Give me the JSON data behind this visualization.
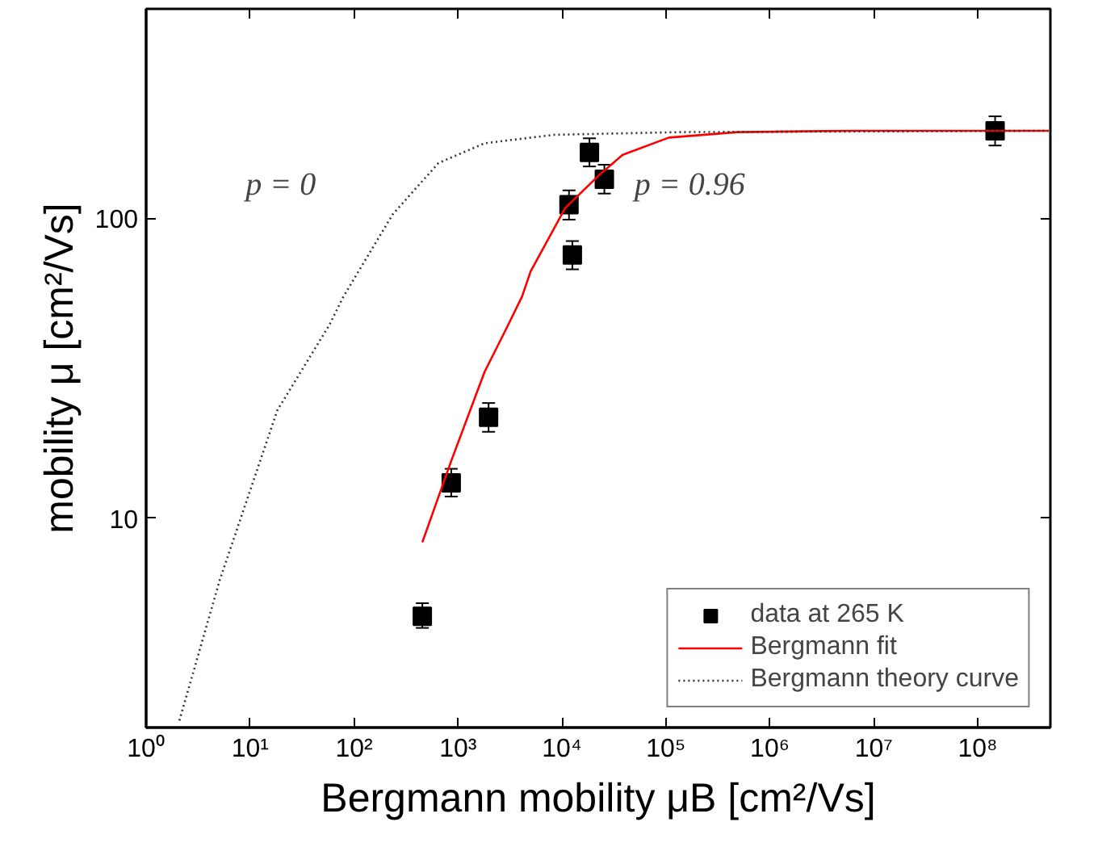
{
  "chart_data": {
    "type": "scatter",
    "xlabel": "Bergmann mobility μB [cm²/Vs]",
    "ylabel": "mobility μ [cm²/Vs]",
    "log": "xy",
    "grid": false,
    "legend": "bottom right",
    "xlim": [
      1,
      500000000
    ],
    "ylim": [
      2,
      500
    ],
    "xticks": [
      {
        "value": 1,
        "label": "10⁰"
      },
      {
        "value": 10,
        "label": "10¹"
      },
      {
        "value": 100,
        "label": "10²"
      },
      {
        "value": 1000,
        "label": "10³"
      },
      {
        "value": 10000,
        "label": "10⁴"
      },
      {
        "value": 100000,
        "label": "10⁵"
      },
      {
        "value": 1000000,
        "label": "10⁶"
      },
      {
        "value": 10000000,
        "label": "10⁷"
      },
      {
        "value": 100000000,
        "label": "10⁸"
      }
    ],
    "yticks": [
      10,
      100
    ],
    "annotations": [
      "p = 0",
      "p = 0.96"
    ],
    "series": [
      {
        "name": "data at 265 K",
        "color": "#000000",
        "marker": "square",
        "x": [
          454,
          861,
          1970,
          11700,
          12600,
          18400,
          25600,
          147000000
        ],
        "values": [
          4.7,
          13.1,
          21.7,
          111,
          75.5,
          166,
          135,
          196
        ],
        "errors": [
          [
            4.3,
            5.2
          ],
          [
            11.8,
            14.6
          ],
          [
            19.4,
            24.2
          ],
          [
            99,
            124
          ],
          [
            67.6,
            84
          ],
          [
            149,
            185
          ],
          [
            121,
            151
          ],
          [
            175,
            219
          ]
        ]
      },
      {
        "name": "Bergmann fit",
        "type": "line",
        "color": "#ff0000",
        "line_style": "solid",
        "x": [
          454,
          861,
          1800,
          2930,
          4130,
          5000,
          10700,
          23100,
          38400,
          107000,
          490000,
          6300000,
          480000000
        ],
        "values": [
          8.3,
          15.5,
          30.7,
          43,
          54.8,
          66.5,
          108,
          140,
          163,
          186,
          194,
          196,
          196
        ]
      },
      {
        "name": "Bergmann theory curve",
        "type": "line",
        "color": "#333333",
        "line_style": "dotted",
        "x": [
          2.09,
          5.1,
          18.3,
          57.7,
          79,
          235,
          649,
          1800,
          8300,
          135000,
          480000000
        ],
        "values": [
          2.11,
          6.2,
          22.9,
          44,
          54.8,
          103,
          153,
          178,
          190,
          194,
          196
        ]
      }
    ]
  }
}
